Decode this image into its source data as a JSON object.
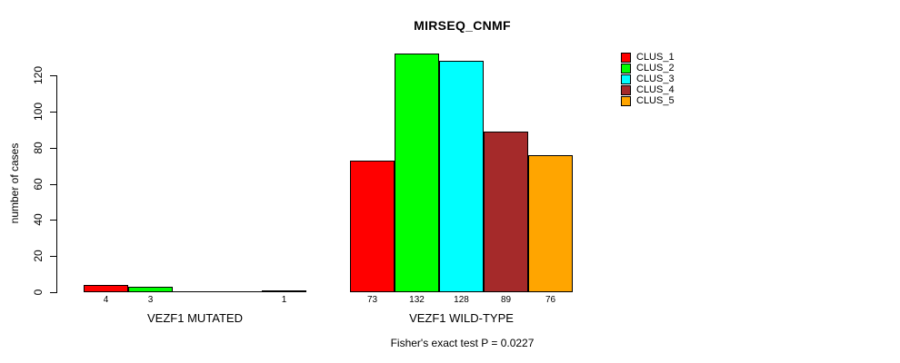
{
  "title": "MIRSEQ_CNMF",
  "chart_data": {
    "type": "bar",
    "title": "MIRSEQ_CNMF",
    "ylabel": "number of cases",
    "xlabel": "",
    "ylim": [
      0,
      120
    ],
    "yticks": [
      0,
      20,
      40,
      60,
      80,
      100,
      120
    ],
    "categories": [
      "VEZF1 MUTATED",
      "VEZF1 WILD-TYPE"
    ],
    "series": [
      {
        "name": "CLUS_1",
        "color": "#ff0000",
        "values": [
          4,
          73
        ]
      },
      {
        "name": "CLUS_2",
        "color": "#00ff00",
        "values": [
          3,
          132
        ]
      },
      {
        "name": "CLUS_3",
        "color": "#00ffff",
        "values": [
          0,
          128
        ]
      },
      {
        "name": "CLUS_4",
        "color": "#a52a2a",
        "values": [
          0,
          89
        ]
      },
      {
        "name": "CLUS_5",
        "color": "#ffa500",
        "values": [
          1,
          76
        ]
      }
    ],
    "legend": {
      "position": "top-right",
      "entries": [
        "CLUS_1",
        "CLUS_2",
        "CLUS_3",
        "CLUS_4",
        "CLUS_5"
      ]
    },
    "annotation": "Fisher's exact test P = 0.0227",
    "grid": false,
    "bar_outline_color": "#000000",
    "zero_bars_shown_as_line": true
  }
}
